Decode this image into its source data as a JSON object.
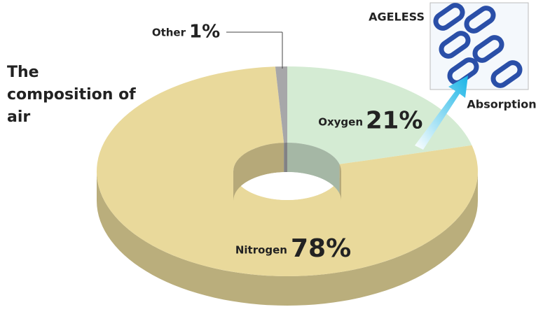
{
  "chart_data": {
    "type": "pie",
    "title": "The composition of air",
    "categories": [
      "Oxygen",
      "Nitrogen",
      "Other"
    ],
    "values": [
      21,
      78,
      1
    ],
    "value_labels": [
      "21%",
      "78%",
      "1%"
    ],
    "colors": [
      "#d4ebd3",
      "#e9d99b",
      "#a7a7a9"
    ],
    "annotations": [
      "AGELESS",
      "Absorption"
    ]
  }
}
